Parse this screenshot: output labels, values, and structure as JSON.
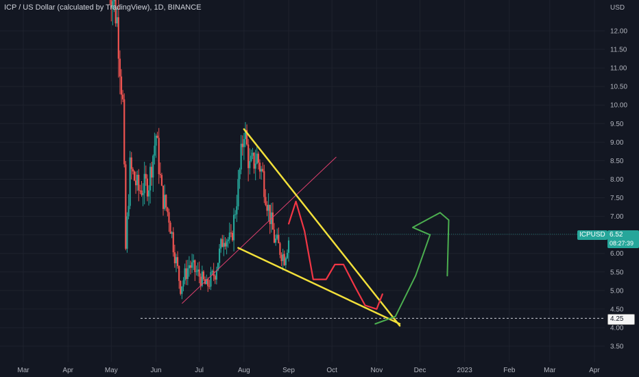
{
  "header": {
    "title": "ICP / US Dollar (calculated by TradingView), 1D, BINANCE"
  },
  "colors": {
    "background": "#131722",
    "grid": "#1e222d",
    "up_candle": "#26a69a",
    "down_candle": "#ef5350",
    "yellow_line": "#f2e03a",
    "red_line": "#f23645",
    "pink_line": "#e0406e",
    "green_line": "#4caf50",
    "tag_bg": "#26a69a"
  },
  "price_tag": {
    "symbol": "ICPUSD",
    "price": "6.52",
    "countdown": "08:27:39"
  },
  "level_tag": {
    "price": "4.25"
  },
  "chart_data": {
    "type": "candlestick",
    "title": "ICP / US Dollar (calculated by TradingView), 1D, BINANCE",
    "y_unit": "USD",
    "ylim": [
      3.1,
      13.6
    ],
    "y_ticks": [
      3.5,
      4.0,
      4.5,
      5.0,
      5.5,
      6.0,
      6.5,
      7.0,
      7.5,
      8.0,
      8.5,
      9.0,
      9.5,
      10.0,
      10.5,
      11.0,
      11.5,
      12.0
    ],
    "y_tick_labels": [
      "3.50",
      "4.00",
      "4.50",
      "5.00",
      "5.50",
      "6.00",
      "6.50",
      "7.00",
      "7.50",
      "8.00",
      "8.50",
      "9.00",
      "9.50",
      "10.00",
      "10.50",
      "11.00",
      "11.50",
      "12.00"
    ],
    "x_ticks": [
      {
        "label": "Mar",
        "date": "2022-03-01"
      },
      {
        "label": "Apr",
        "date": "2022-04-01"
      },
      {
        "label": "May",
        "date": "2022-05-01"
      },
      {
        "label": "Jun",
        "date": "2022-06-01"
      },
      {
        "label": "Jul",
        "date": "2022-07-01"
      },
      {
        "label": "Aug",
        "date": "2022-08-01"
      },
      {
        "label": "Sep",
        "date": "2022-09-01"
      },
      {
        "label": "Oct",
        "date": "2022-10-01"
      },
      {
        "label": "Nov",
        "date": "2022-11-01"
      },
      {
        "label": "Dec",
        "date": "2022-12-01"
      },
      {
        "label": "2023",
        "date": "2023-01-01"
      },
      {
        "label": "Feb",
        "date": "2023-02-01"
      },
      {
        "label": "Mar",
        "date": "2023-03-01"
      },
      {
        "label": "Apr",
        "date": "2023-04-01"
      }
    ],
    "last_price": 6.52,
    "horizontal_level": 4.25,
    "candle_key_points": [
      {
        "date": "2022-04-29",
        "close": 13.5
      },
      {
        "date": "2022-05-05",
        "close": 12.3
      },
      {
        "date": "2022-05-09",
        "close": 10.0
      },
      {
        "date": "2022-05-11",
        "close": 6.1
      },
      {
        "date": "2022-05-14",
        "close": 8.3
      },
      {
        "date": "2022-05-20",
        "close": 7.7
      },
      {
        "date": "2022-05-27",
        "close": 7.9
      },
      {
        "date": "2022-06-01",
        "close": 9.2
      },
      {
        "date": "2022-06-05",
        "close": 7.6
      },
      {
        "date": "2022-06-10",
        "close": 7.0
      },
      {
        "date": "2022-06-14",
        "close": 6.0
      },
      {
        "date": "2022-06-18",
        "close": 5.1
      },
      {
        "date": "2022-06-24",
        "close": 5.7
      },
      {
        "date": "2022-07-01",
        "close": 5.4
      },
      {
        "date": "2022-07-06",
        "close": 5.1
      },
      {
        "date": "2022-07-12",
        "close": 5.5
      },
      {
        "date": "2022-07-18",
        "close": 6.5
      },
      {
        "date": "2022-07-23",
        "close": 6.3
      },
      {
        "date": "2022-07-28",
        "close": 7.8
      },
      {
        "date": "2022-08-01",
        "close": 9.4
      },
      {
        "date": "2022-08-05",
        "close": 8.3
      },
      {
        "date": "2022-08-10",
        "close": 8.6
      },
      {
        "date": "2022-08-14",
        "close": 8.1
      },
      {
        "date": "2022-08-18",
        "close": 7.2
      },
      {
        "date": "2022-08-22",
        "close": 6.4
      },
      {
        "date": "2022-08-26",
        "close": 6.1
      },
      {
        "date": "2022-08-29",
        "close": 5.9
      },
      {
        "date": "2022-09-01",
        "close": 6.4
      }
    ],
    "drawings": {
      "yellow_upper_line": [
        {
          "date": "2022-08-01",
          "price": 9.35
        },
        {
          "date": "2022-11-17",
          "price": 4.05
        }
      ],
      "yellow_lower_line": [
        {
          "date": "2022-07-28",
          "price": 6.15
        },
        {
          "date": "2022-11-17",
          "price": 4.1
        }
      ],
      "pink_trendline": [
        {
          "date": "2022-06-19",
          "price": 4.65
        },
        {
          "date": "2022-10-04",
          "price": 8.6
        }
      ],
      "red_projection": [
        {
          "date": "2022-09-01",
          "price": 6.8
        },
        {
          "date": "2022-09-06",
          "price": 7.4
        },
        {
          "date": "2022-09-12",
          "price": 6.6
        },
        {
          "date": "2022-09-18",
          "price": 5.3
        },
        {
          "date": "2022-09-27",
          "price": 5.3
        },
        {
          "date": "2022-10-03",
          "price": 5.7
        },
        {
          "date": "2022-10-09",
          "price": 5.7
        },
        {
          "date": "2022-10-17",
          "price": 5.1
        },
        {
          "date": "2022-10-24",
          "price": 4.6
        },
        {
          "date": "2022-11-01",
          "price": 4.5
        },
        {
          "date": "2022-11-05",
          "price": 4.9
        }
      ],
      "green_projection": [
        {
          "date": "2022-10-31",
          "price": 4.1
        },
        {
          "date": "2022-11-14",
          "price": 4.3
        },
        {
          "date": "2022-11-28",
          "price": 5.4
        },
        {
          "date": "2022-12-08",
          "price": 6.5
        },
        {
          "date": "2022-11-26",
          "price": 6.7
        },
        {
          "date": "2022-12-15",
          "price": 7.1
        },
        {
          "date": "2022-12-21",
          "price": 6.9
        },
        {
          "date": "2022-12-20",
          "price": 5.4
        }
      ]
    }
  }
}
